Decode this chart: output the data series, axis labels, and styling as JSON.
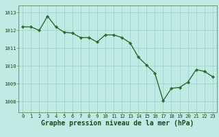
{
  "x": [
    0,
    1,
    2,
    3,
    4,
    5,
    6,
    7,
    8,
    9,
    10,
    11,
    12,
    13,
    14,
    15,
    16,
    17,
    18,
    19,
    20,
    21,
    22,
    23
  ],
  "y": [
    1012.2,
    1012.2,
    1012.0,
    1012.8,
    1012.2,
    1011.9,
    1011.85,
    1011.6,
    1011.6,
    1011.35,
    1011.75,
    1011.75,
    1011.6,
    1011.3,
    1010.5,
    1010.05,
    1009.6,
    1008.05,
    1008.75,
    1008.8,
    1009.1,
    1009.8,
    1009.7,
    1009.4
  ],
  "line_color": "#2d6a2d",
  "marker_color": "#2d6a2d",
  "bg_color": "#c0eae4",
  "grid_color": "#9eccc6",
  "axis_color": "#5a8a5a",
  "label_color": "#1a4a1a",
  "xlabel": "Graphe pression niveau de la mer (hPa)",
  "yticks": [
    1008,
    1009,
    1010,
    1011,
    1012,
    1013
  ],
  "ylim": [
    1007.4,
    1013.4
  ],
  "xlim": [
    -0.5,
    23.5
  ],
  "xticks": [
    0,
    1,
    2,
    3,
    4,
    5,
    6,
    7,
    8,
    9,
    10,
    11,
    12,
    13,
    14,
    15,
    16,
    17,
    18,
    19,
    20,
    21,
    22,
    23
  ],
  "tick_fontsize": 5.2,
  "xlabel_fontsize": 7.0,
  "line_width": 1.0,
  "marker_size": 2.2
}
